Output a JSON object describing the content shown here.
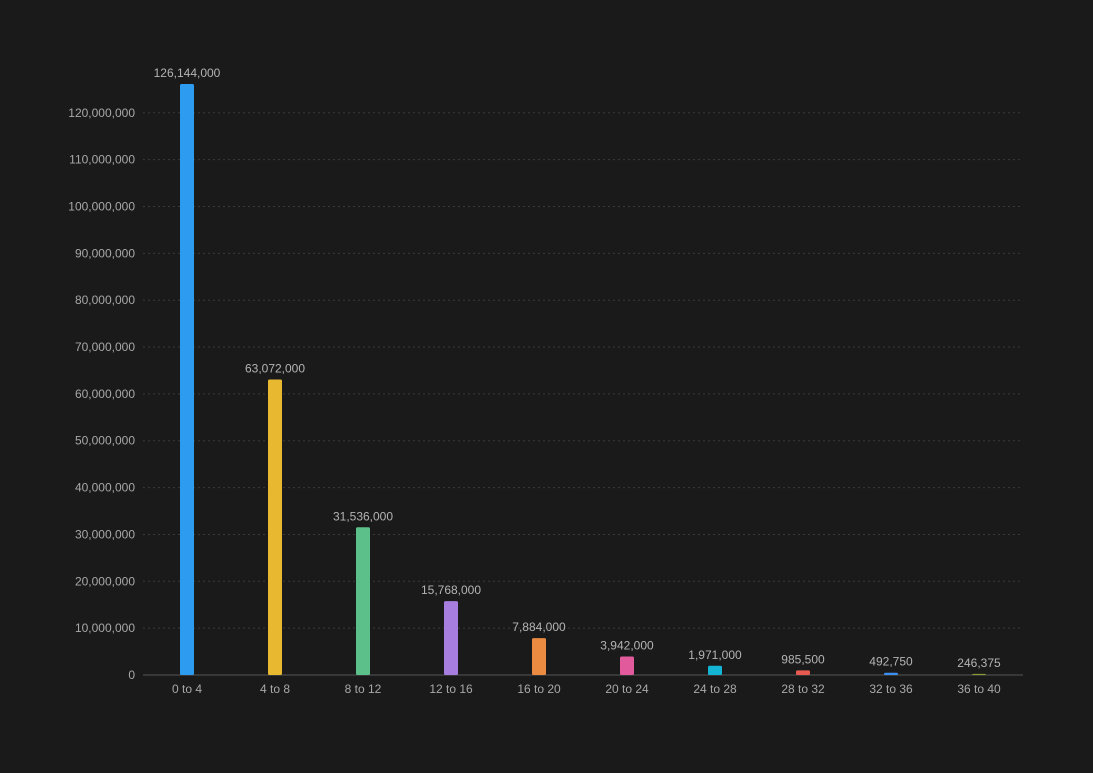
{
  "chart_data": {
    "type": "bar",
    "title": "",
    "xlabel": "",
    "ylabel": "",
    "ylim": [
      0,
      126144000
    ],
    "yticks": [
      0,
      10000000,
      20000000,
      30000000,
      40000000,
      50000000,
      60000000,
      70000000,
      80000000,
      90000000,
      100000000,
      110000000,
      120000000
    ],
    "ytick_labels": [
      "0",
      "10,000,000",
      "20,000,000",
      "30,000,000",
      "40,000,000",
      "50,000,000",
      "60,000,000",
      "70,000,000",
      "80,000,000",
      "90,000,000",
      "100,000,000",
      "110,000,000",
      "120,000,000"
    ],
    "grid": true,
    "categories": [
      "0 to 4",
      "4 to 8",
      "8 to 12",
      "12 to 16",
      "16 to 20",
      "20 to 24",
      "24 to 28",
      "28 to 32",
      "32 to 36",
      "36 to 40"
    ],
    "values": [
      126144000,
      63072000,
      31536000,
      15768000,
      7884000,
      3942000,
      1971000,
      985500,
      492750,
      246375
    ],
    "value_labels": [
      "126,144,000",
      "63,072,000",
      "31,536,000",
      "15,768,000",
      "7,884,000",
      "3,942,000",
      "1,971,000",
      "985,500",
      "492,750",
      "246,375"
    ],
    "colors": [
      "#2d9bf0",
      "#e8b830",
      "#5cc08a",
      "#a77de0",
      "#eb8b42",
      "#e05a9c",
      "#14b4d4",
      "#e85a50",
      "#3a8ff0",
      "#8a9a30"
    ]
  }
}
